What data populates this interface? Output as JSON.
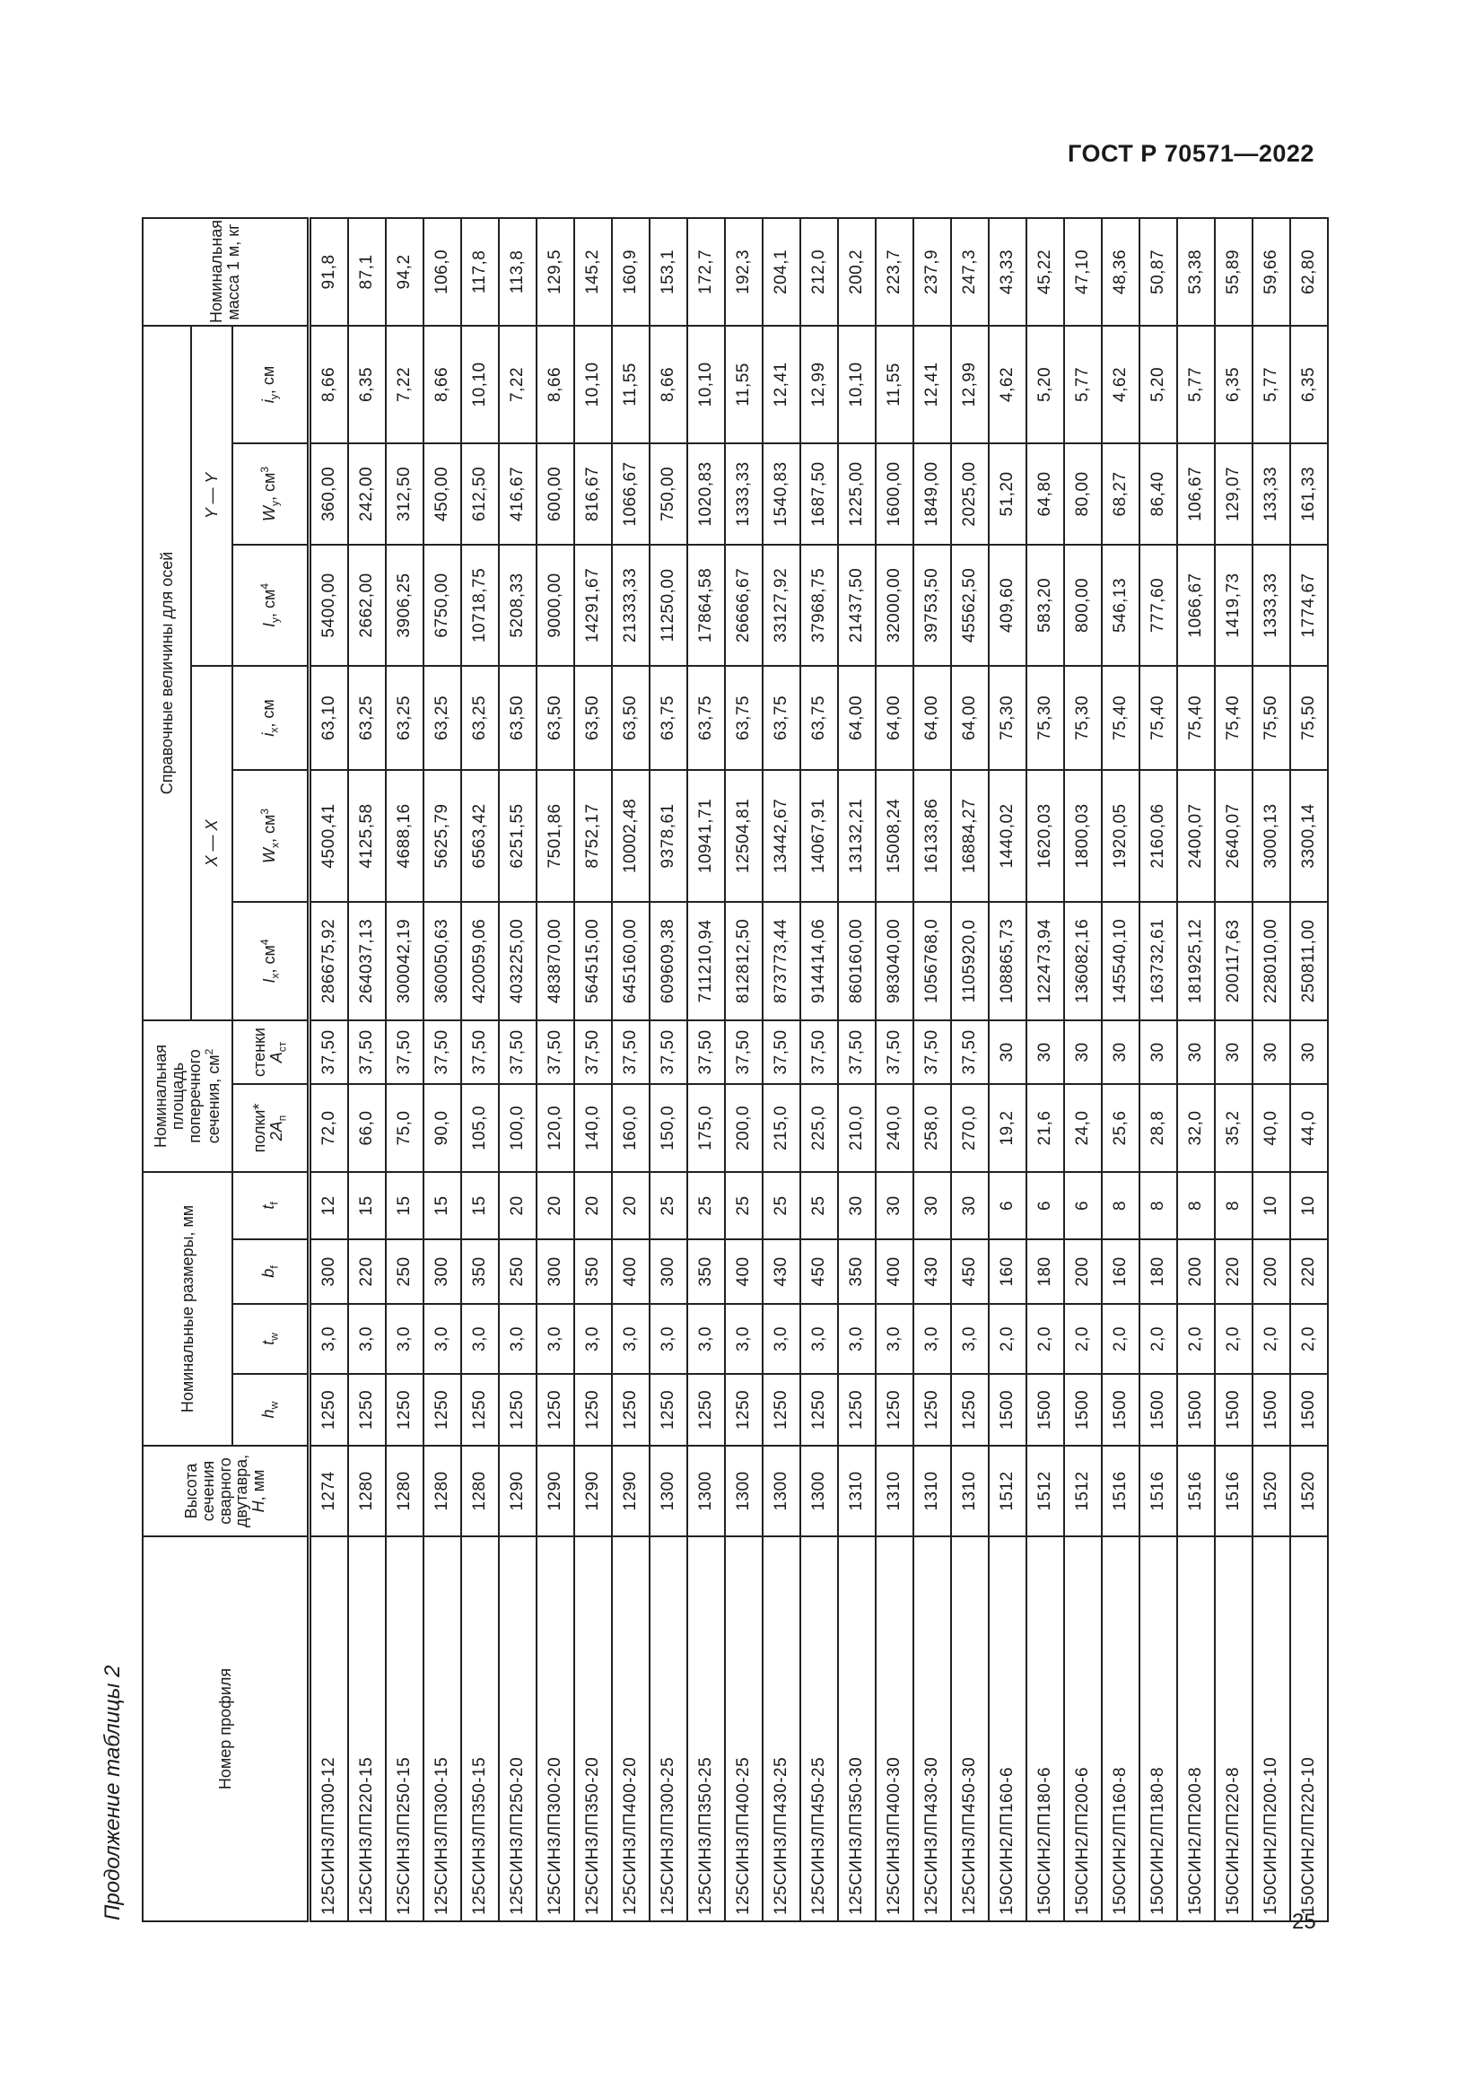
{
  "doc_header": "ГОСТ Р 70571—2022",
  "caption": "Продолжение таблицы 2",
  "page_number": "25",
  "table": {
    "headers": {
      "profile": "Номер профиля",
      "height": "Высота сечения сварного двутавра,",
      "height_sym": "H",
      "height_unit": ", мм",
      "dims": "Номинальные размеры, мм",
      "area": "Номинальная площадь поперечного сечения, см",
      "area_sup": "2",
      "ref": "Справочные величины для осей",
      "axis_x": "X — X",
      "axis_y": "Y — Y",
      "mass": "Номинальная масса 1 м, кг",
      "sub": [
        {
          "sym": "h",
          "sub": "w",
          "unit": "",
          "sup": ""
        },
        {
          "sym": "t",
          "sub": "w",
          "unit": "",
          "sup": ""
        },
        {
          "sym": "b",
          "sub": "f",
          "unit": "",
          "sup": ""
        },
        {
          "sym": "t",
          "sub": "f",
          "unit": "",
          "sup": ""
        },
        {
          "pre": "полки*",
          "sym": "2A",
          "sub": "п",
          "unit": "",
          "sup": ""
        },
        {
          "pre": "стенки",
          "sym": "A",
          "sub": "ст",
          "unit": "",
          "sup": ""
        },
        {
          "sym": "I",
          "sub": "x",
          "unit": ", см",
          "sup": "4"
        },
        {
          "sym": "W",
          "sub": "x",
          "unit": ", см",
          "sup": "3"
        },
        {
          "sym": "i",
          "sub": "x",
          "unit": ", см",
          "sup": ""
        },
        {
          "sym": "I",
          "sub": "y",
          "unit": ", см",
          "sup": "4"
        },
        {
          "sym": "W",
          "sub": "y",
          "unit": ", см",
          "sup": "3"
        },
        {
          "sym": "i",
          "sub": "y",
          "unit": ", см",
          "sup": ""
        }
      ]
    },
    "rows": [
      [
        "125СИН3ЛП300-12",
        "1274",
        "1250",
        "3,0",
        "300",
        "12",
        "72,0",
        "37,50",
        "286675,92",
        "4500,41",
        "63,10",
        "5400,00",
        "360,00",
        "8,66",
        "91,8"
      ],
      [
        "125СИН3ЛП220-15",
        "1280",
        "1250",
        "3,0",
        "220",
        "15",
        "66,0",
        "37,50",
        "264037,13",
        "4125,58",
        "63,25",
        "2662,00",
        "242,00",
        "6,35",
        "87,1"
      ],
      [
        "125СИН3ЛП250-15",
        "1280",
        "1250",
        "3,0",
        "250",
        "15",
        "75,0",
        "37,50",
        "300042,19",
        "4688,16",
        "63,25",
        "3906,25",
        "312,50",
        "7,22",
        "94,2"
      ],
      [
        "125СИН3ЛП300-15",
        "1280",
        "1250",
        "3,0",
        "300",
        "15",
        "90,0",
        "37,50",
        "360050,63",
        "5625,79",
        "63,25",
        "6750,00",
        "450,00",
        "8,66",
        "106,0"
      ],
      [
        "125СИН3ЛП350-15",
        "1280",
        "1250",
        "3,0",
        "350",
        "15",
        "105,0",
        "37,50",
        "420059,06",
        "6563,42",
        "63,25",
        "10718,75",
        "612,50",
        "10,10",
        "117,8"
      ],
      [
        "125СИН3ЛП250-20",
        "1290",
        "1250",
        "3,0",
        "250",
        "20",
        "100,0",
        "37,50",
        "403225,00",
        "6251,55",
        "63,50",
        "5208,33",
        "416,67",
        "7,22",
        "113,8"
      ],
      [
        "125СИН3ЛП300-20",
        "1290",
        "1250",
        "3,0",
        "300",
        "20",
        "120,0",
        "37,50",
        "483870,00",
        "7501,86",
        "63,50",
        "9000,00",
        "600,00",
        "8,66",
        "129,5"
      ],
      [
        "125СИН3ЛП350-20",
        "1290",
        "1250",
        "3,0",
        "350",
        "20",
        "140,0",
        "37,50",
        "564515,00",
        "8752,17",
        "63,50",
        "14291,67",
        "816,67",
        "10,10",
        "145,2"
      ],
      [
        "125СИН3ЛП400-20",
        "1290",
        "1250",
        "3,0",
        "400",
        "20",
        "160,0",
        "37,50",
        "645160,00",
        "10002,48",
        "63,50",
        "21333,33",
        "1066,67",
        "11,55",
        "160,9"
      ],
      [
        "125СИН3ЛП300-25",
        "1300",
        "1250",
        "3,0",
        "300",
        "25",
        "150,0",
        "37,50",
        "609609,38",
        "9378,61",
        "63,75",
        "11250,00",
        "750,00",
        "8,66",
        "153,1"
      ],
      [
        "125СИН3ЛП350-25",
        "1300",
        "1250",
        "3,0",
        "350",
        "25",
        "175,0",
        "37,50",
        "711210,94",
        "10941,71",
        "63,75",
        "17864,58",
        "1020,83",
        "10,10",
        "172,7"
      ],
      [
        "125СИН3ЛП400-25",
        "1300",
        "1250",
        "3,0",
        "400",
        "25",
        "200,0",
        "37,50",
        "812812,50",
        "12504,81",
        "63,75",
        "26666,67",
        "1333,33",
        "11,55",
        "192,3"
      ],
      [
        "125СИН3ЛП430-25",
        "1300",
        "1250",
        "3,0",
        "430",
        "25",
        "215,0",
        "37,50",
        "873773,44",
        "13442,67",
        "63,75",
        "33127,92",
        "1540,83",
        "12,41",
        "204,1"
      ],
      [
        "125СИН3ЛП450-25",
        "1300",
        "1250",
        "3,0",
        "450",
        "25",
        "225,0",
        "37,50",
        "914414,06",
        "14067,91",
        "63,75",
        "37968,75",
        "1687,50",
        "12,99",
        "212,0"
      ],
      [
        "125СИН3ЛП350-30",
        "1310",
        "1250",
        "3,0",
        "350",
        "30",
        "210,0",
        "37,50",
        "860160,00",
        "13132,21",
        "64,00",
        "21437,50",
        "1225,00",
        "10,10",
        "200,2"
      ],
      [
        "125СИН3ЛП400-30",
        "1310",
        "1250",
        "3,0",
        "400",
        "30",
        "240,0",
        "37,50",
        "983040,00",
        "15008,24",
        "64,00",
        "32000,00",
        "1600,00",
        "11,55",
        "223,7"
      ],
      [
        "125СИН3ЛП430-30",
        "1310",
        "1250",
        "3,0",
        "430",
        "30",
        "258,0",
        "37,50",
        "1056768,0",
        "16133,86",
        "64,00",
        "39753,50",
        "1849,00",
        "12,41",
        "237,9"
      ],
      [
        "125СИН3ЛП450-30",
        "1310",
        "1250",
        "3,0",
        "450",
        "30",
        "270,0",
        "37,50",
        "1105920,0",
        "16884,27",
        "64,00",
        "45562,50",
        "2025,00",
        "12,99",
        "247,3"
      ],
      [
        "150СИН2ЛП160-6",
        "1512",
        "1500",
        "2,0",
        "160",
        "6",
        "19,2",
        "30",
        "108865,73",
        "1440,02",
        "75,30",
        "409,60",
        "51,20",
        "4,62",
        "43,33"
      ],
      [
        "150СИН2ЛП180-6",
        "1512",
        "1500",
        "2,0",
        "180",
        "6",
        "21,6",
        "30",
        "122473,94",
        "1620,03",
        "75,30",
        "583,20",
        "64,80",
        "5,20",
        "45,22"
      ],
      [
        "150СИН2ЛП200-6",
        "1512",
        "1500",
        "2,0",
        "200",
        "6",
        "24,0",
        "30",
        "136082,16",
        "1800,03",
        "75,30",
        "800,00",
        "80,00",
        "5,77",
        "47,10"
      ],
      [
        "150СИН2ЛП160-8",
        "1516",
        "1500",
        "2,0",
        "160",
        "8",
        "25,6",
        "30",
        "145540,10",
        "1920,05",
        "75,40",
        "546,13",
        "68,27",
        "4,62",
        "48,36"
      ],
      [
        "150СИН2ЛП180-8",
        "1516",
        "1500",
        "2,0",
        "180",
        "8",
        "28,8",
        "30",
        "163732,61",
        "2160,06",
        "75,40",
        "777,60",
        "86,40",
        "5,20",
        "50,87"
      ],
      [
        "150СИН2ЛП200-8",
        "1516",
        "1500",
        "2,0",
        "200",
        "8",
        "32,0",
        "30",
        "181925,12",
        "2400,07",
        "75,40",
        "1066,67",
        "106,67",
        "5,77",
        "53,38"
      ],
      [
        "150СИН2ЛП220-8",
        "1516",
        "1500",
        "2,0",
        "220",
        "8",
        "35,2",
        "30",
        "200117,63",
        "2640,07",
        "75,40",
        "1419,73",
        "129,07",
        "6,35",
        "55,89"
      ],
      [
        "150СИН2ЛП200-10",
        "1520",
        "1500",
        "2,0",
        "200",
        "10",
        "40,0",
        "30",
        "228010,00",
        "3000,13",
        "75,50",
        "1333,33",
        "133,33",
        "5,77",
        "59,66"
      ],
      [
        "150СИН2ЛП220-10",
        "1520",
        "1500",
        "2,0",
        "220",
        "10",
        "44,0",
        "30",
        "250811,00",
        "3300,14",
        "75,50",
        "1774,67",
        "161,33",
        "6,35",
        "62,80"
      ]
    ]
  }
}
